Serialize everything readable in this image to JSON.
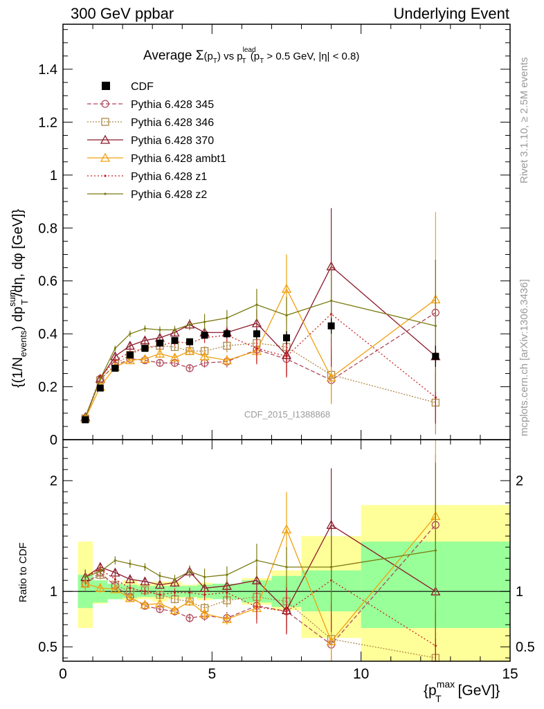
{
  "header": {
    "left": "300 GeV ppbar",
    "right": "Underlying Event"
  },
  "side_labels": {
    "rivet": "Rivet 3.1.10, ≥ 2.5M events",
    "mcplots": "mcplots.cern.ch [arXiv:1306.3436]"
  },
  "watermark": "CDF_2015_I1388868",
  "colors": {
    "CDF": "#000000",
    "345": "#b0485a",
    "346": "#b08848",
    "370": "#8b1a2b",
    "ambt1": "#f0a010",
    "z1": "#c82020",
    "z2": "#7a7a10",
    "band_inner": "#99ff99",
    "band_outer": "#ffff99"
  },
  "chart_data": [
    {
      "type": "line",
      "title": "Average Σ(pT) vs pT lead (pT > 0.5 GeV, |η| < 0.8)",
      "title_parts": {
        "t1": "Average ",
        "sigma": "Σ",
        "t2": "(p",
        "sub_T": "T",
        "t3": ") vs p",
        "sup_lead": "lead",
        "t4": " (p",
        "t5": " > 0.5 GeV, |η| < 0.8)"
      },
      "ylabel": "{(1/N_events) dp_T^sum/dη, dφ [GeV]}",
      "ylabel_parts": {
        "a": "{(1/N",
        "sub_events": "events",
        "b": ") dp",
        "sup_sum": "sum",
        "c": "/dη, dφ [GeV]}"
      },
      "xlim": [
        0,
        15
      ],
      "ylim": [
        0,
        1.57
      ],
      "yticks": [
        0,
        0.2,
        0.4,
        0.6,
        0.8,
        1,
        1.2,
        1.4
      ],
      "ytick_labels": [
        "0",
        "0.2",
        "0.4",
        "0.6",
        "0.8",
        "1",
        "1.2",
        "1.4"
      ],
      "legend_position": "top-left",
      "x": [
        0.75,
        1.25,
        1.75,
        2.25,
        2.75,
        3.25,
        3.75,
        4.25,
        4.75,
        5.5,
        6.5,
        7.5,
        9.0,
        12.5
      ],
      "cdf": {
        "name": "CDF",
        "values": [
          0.075,
          0.195,
          0.27,
          0.32,
          0.345,
          0.365,
          0.375,
          0.37,
          0.395,
          0.4,
          0.4,
          0.385,
          0.43,
          0.315
        ],
        "errors": [
          0.005,
          0.007,
          0.008,
          0.008,
          0.009,
          0.01,
          0.01,
          0.012,
          0.013,
          0.015,
          0.02,
          0.025,
          0.03,
          0.04
        ]
      },
      "series": [
        {
          "key": "345",
          "name": "Pythia 6.428 345",
          "marker": "circle",
          "dash": "6,3",
          "values": [
            0.08,
            0.23,
            0.28,
            0.305,
            0.3,
            0.29,
            0.29,
            0.27,
            0.29,
            0.295,
            0.34,
            0.305,
            0.225,
            0.48
          ],
          "errors": [
            0.005,
            0.008,
            0.01,
            0.012,
            0.012,
            0.013,
            0.014,
            0.015,
            0.018,
            0.022,
            0.05,
            0.06,
            0.09,
            0.2
          ]
        },
        {
          "key": "346",
          "name": "Pythia 6.428 346",
          "marker": "square",
          "dash": "2,2",
          "values": [
            0.08,
            0.225,
            0.285,
            0.32,
            0.35,
            0.355,
            0.35,
            0.335,
            0.335,
            0.355,
            0.365,
            0.35,
            0.245,
            0.14
          ],
          "errors": [
            0.005,
            0.008,
            0.01,
            0.012,
            0.012,
            0.013,
            0.014,
            0.015,
            0.018,
            0.025,
            0.05,
            0.06,
            0.1,
            0.12
          ]
        },
        {
          "key": "370",
          "name": "Pythia 6.428 370",
          "marker": "triangle",
          "dash": "",
          "values": [
            0.085,
            0.23,
            0.315,
            0.355,
            0.375,
            0.385,
            0.405,
            0.435,
            0.405,
            0.405,
            0.44,
            0.32,
            0.655,
            0.315
          ],
          "errors": [
            0.005,
            0.008,
            0.01,
            0.012,
            0.012,
            0.013,
            0.015,
            0.02,
            0.02,
            0.025,
            0.05,
            0.08,
            0.22,
            0.25
          ]
        },
        {
          "key": "ambt1",
          "name": "Pythia 6.428 ambt1",
          "marker": "triangle",
          "dash": "",
          "values": [
            0.08,
            0.2,
            0.275,
            0.3,
            0.305,
            0.325,
            0.31,
            0.335,
            0.315,
            0.3,
            0.335,
            0.57,
            0.235,
            0.53
          ],
          "errors": [
            0.005,
            0.008,
            0.01,
            0.012,
            0.012,
            0.013,
            0.015,
            0.015,
            0.02,
            0.02,
            0.04,
            0.13,
            0.1,
            0.33
          ]
        },
        {
          "key": "z1",
          "name": "Pythia 6.428 z1",
          "marker": "dot",
          "dash": "2,3",
          "values": [
            0.085,
            0.235,
            0.3,
            0.33,
            0.345,
            0.355,
            0.37,
            0.365,
            0.385,
            0.395,
            0.345,
            0.315,
            0.475,
            0.16
          ],
          "errors": [
            0.005,
            0.008,
            0.01,
            0.012,
            0.012,
            0.013,
            0.014,
            0.016,
            0.02,
            0.025,
            0.06,
            0.08,
            0.2,
            0.1
          ]
        },
        {
          "key": "z2",
          "name": "Pythia 6.428 z2",
          "marker": "dot",
          "dash": "",
          "values": [
            0.085,
            0.23,
            0.345,
            0.4,
            0.42,
            0.415,
            0.415,
            0.435,
            0.445,
            0.46,
            0.51,
            0.47,
            0.525,
            0.43
          ],
          "errors": [
            0.005,
            0.008,
            0.01,
            0.012,
            0.012,
            0.013,
            0.015,
            0.02,
            0.03,
            0.03,
            0.06,
            0.07,
            0.14,
            0.25
          ]
        }
      ]
    },
    {
      "type": "line",
      "ylabel": "Ratio to CDF",
      "xlabel": "{p_T^max [GeV]}",
      "xlabel_parts": {
        "a": "{p",
        "sup_max": "max",
        "b": " [GeV]}"
      },
      "xlim": [
        0,
        15
      ],
      "ylim": [
        0.37,
        2.37
      ],
      "xticks": [
        0,
        5,
        10,
        15
      ],
      "xtick_labels": [
        "0",
        "5",
        "10",
        "15"
      ],
      "yticks": [
        0.5,
        1,
        2
      ],
      "ytick_labels": [
        "0.5",
        "1",
        "2"
      ],
      "bands": {
        "bin_edges": [
          0.5,
          1.0,
          1.5,
          2.0,
          2.5,
          3.0,
          3.5,
          4.0,
          4.5,
          5.0,
          6.0,
          7.0,
          8.0,
          10.0,
          15.0
        ],
        "inner_low": [
          0.85,
          0.9,
          0.93,
          0.94,
          0.95,
          0.95,
          0.95,
          0.95,
          0.94,
          0.93,
          0.9,
          0.86,
          0.82,
          0.67
        ],
        "inner_high": [
          1.15,
          1.1,
          1.07,
          1.06,
          1.05,
          1.05,
          1.05,
          1.05,
          1.06,
          1.07,
          1.1,
          1.14,
          1.19,
          1.45
        ],
        "outer_low": [
          0.67,
          0.89,
          0.93,
          0.92,
          0.93,
          0.91,
          0.93,
          0.94,
          0.92,
          0.93,
          0.88,
          0.83,
          0.58,
          0.37
        ],
        "outer_high": [
          1.45,
          1.1,
          1.07,
          1.1,
          1.07,
          1.09,
          1.09,
          1.06,
          1.08,
          1.07,
          1.12,
          1.19,
          1.5,
          1.78
        ]
      },
      "series": [
        {
          "key": "345",
          "name": "Pythia 6.428 345",
          "values": [
            1.07,
            1.17,
            1.05,
            0.95,
            0.87,
            0.84,
            0.82,
            0.76,
            0.78,
            0.76,
            0.87,
            0.82,
            0.52,
            1.6
          ]
        },
        {
          "key": "346",
          "name": "Pythia 6.428 346",
          "values": [
            1.07,
            1.15,
            1.06,
            1.0,
            1.01,
            0.97,
            0.93,
            0.91,
            0.85,
            0.92,
            0.95,
            0.91,
            0.57,
            0.4
          ]
        },
        {
          "key": "370",
          "name": "Pythia 6.428 370",
          "values": [
            1.13,
            1.22,
            1.17,
            1.11,
            1.09,
            1.06,
            1.08,
            1.18,
            1.03,
            1.05,
            1.1,
            0.83,
            1.6,
            1.0
          ]
        },
        {
          "key": "ambt1",
          "name": "Pythia 6.428 ambt1",
          "values": [
            1.07,
            1.03,
            1.02,
            0.94,
            0.88,
            0.89,
            0.83,
            0.91,
            0.8,
            0.75,
            0.85,
            1.56,
            0.55,
            1.68
          ]
        },
        {
          "key": "z1",
          "name": "Pythia 6.428 z1",
          "values": [
            1.13,
            1.2,
            1.11,
            1.03,
            1.0,
            0.97,
            0.99,
            0.99,
            0.97,
            0.99,
            0.86,
            0.82,
            1.1,
            0.51
          ]
        },
        {
          "key": "z2",
          "name": "Pythia 6.428 z2",
          "values": [
            1.13,
            1.18,
            1.28,
            1.25,
            1.22,
            1.14,
            1.11,
            1.18,
            1.13,
            1.15,
            1.28,
            1.22,
            1.22,
            1.37
          ]
        }
      ]
    }
  ]
}
